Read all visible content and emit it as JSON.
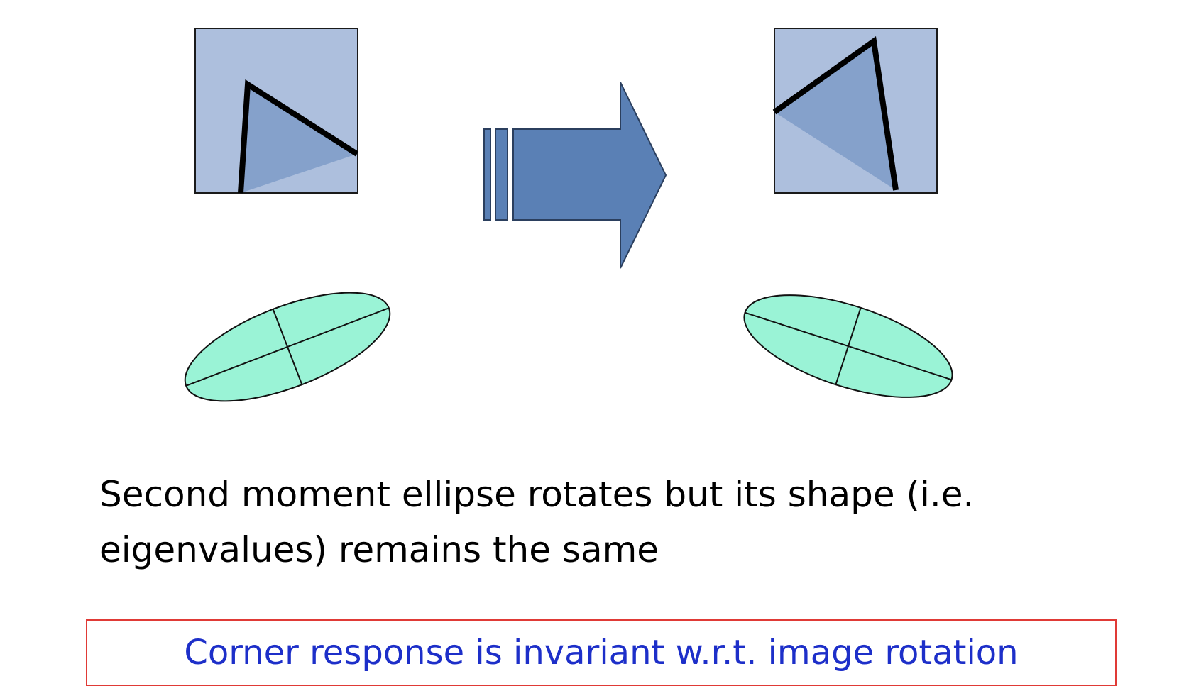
{
  "caption": {
    "line1": "Second moment ellipse rotates but its shape (i.e.",
    "line2": "eigenvalues) remains the same"
  },
  "conclusion": {
    "text": "Corner response is invariant w.r.t. image rotation"
  },
  "colors": {
    "patch_fill": "#adbfdd",
    "patch_stroke": "#1a1a1a",
    "corner_fill": "#85a1cb",
    "corner_line": "#000000",
    "arrow_fill": "#5a80b5",
    "arrow_stroke": "#2b3f5e",
    "ellipse_fill": "#9af3d6",
    "ellipse_stroke": "#111111",
    "box_border": "#e03a36",
    "conclusion_text": "#1d2fc9"
  }
}
